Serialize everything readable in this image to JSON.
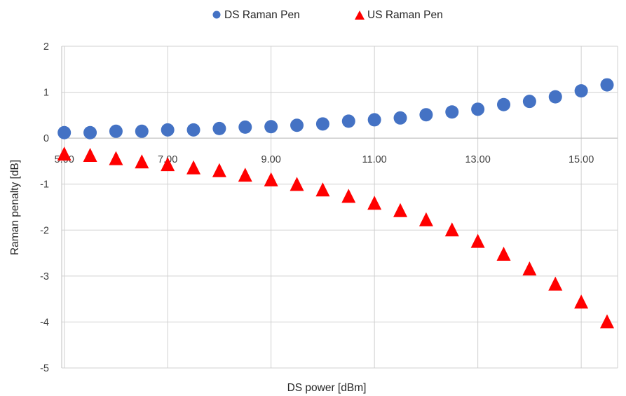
{
  "chart_data": {
    "type": "scatter",
    "title": "",
    "xlabel": "DS power [dBm]",
    "ylabel": "Raman penalty [dB]",
    "xlim": [
      5,
      15.5
    ],
    "ylim": [
      -5,
      2
    ],
    "x_ticks": [
      5,
      7,
      9,
      11,
      13,
      15
    ],
    "x_tick_labels": [
      "5.00",
      "7.00",
      "9.00",
      "11.00",
      "13.00",
      "15.00"
    ],
    "y_ticks": [
      2,
      1,
      0,
      -1,
      -2,
      -3,
      -4,
      -5
    ],
    "y_tick_labels": [
      "2",
      "1",
      "0",
      "-1",
      "-2",
      "-3",
      "-4",
      "-5"
    ],
    "grid": true,
    "legend_position": "top-center",
    "x": [
      5,
      5.5,
      6,
      6.5,
      7,
      7.5,
      8,
      8.5,
      9,
      9.5,
      10,
      10.5,
      11,
      11.5,
      12,
      12.5,
      13,
      13.5,
      14,
      14.5,
      15,
      15.5
    ],
    "series": [
      {
        "name": "DS Raman Pen",
        "marker": "circle",
        "color": "#4472C4",
        "values": [
          0.12,
          0.12,
          0.15,
          0.15,
          0.18,
          0.18,
          0.21,
          0.24,
          0.25,
          0.28,
          0.31,
          0.37,
          0.4,
          0.44,
          0.51,
          0.57,
          0.63,
          0.73,
          0.8,
          0.9,
          1.03,
          1.16
        ]
      },
      {
        "name": "US Raman Pen",
        "marker": "triangle",
        "color": "#FF0000",
        "values": [
          -0.35,
          -0.38,
          -0.45,
          -0.52,
          -0.58,
          -0.65,
          -0.71,
          -0.81,
          -0.91,
          -1.01,
          -1.13,
          -1.27,
          -1.42,
          -1.58,
          -1.78,
          -2.0,
          -2.25,
          -2.53,
          -2.85,
          -3.18,
          -3.57,
          -4.0
        ]
      }
    ]
  }
}
